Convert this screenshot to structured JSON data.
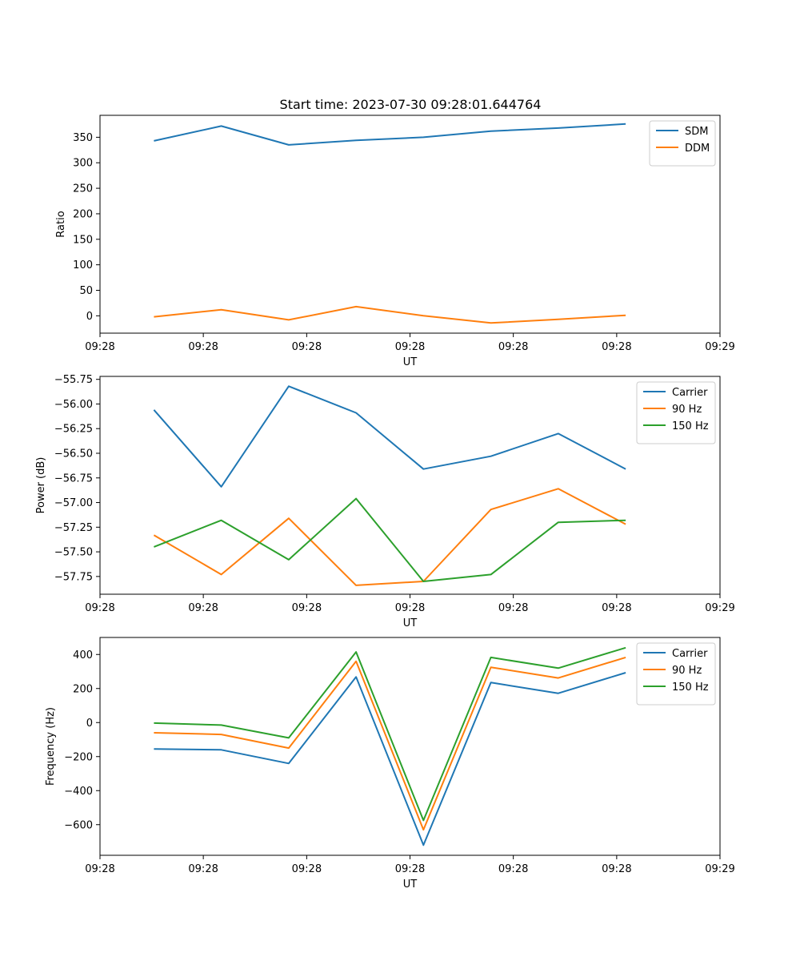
{
  "title": "Start time: 2023-07-30 09:28:01.644764",
  "chart_data": [
    {
      "type": "line",
      "xlabel": "UT",
      "ylabel": "Ratio",
      "x": [
        1,
        2,
        3,
        4,
        5,
        6,
        7,
        8
      ],
      "xlim": [
        0.2,
        9.4
      ],
      "xticks": [
        0.2,
        1.733,
        3.267,
        4.8,
        6.333,
        7.867,
        9.4
      ],
      "xtick_labels": [
        "09:28",
        "09:28",
        "09:28",
        "09:28",
        "09:28",
        "09:28",
        "09:29"
      ],
      "ylim": [
        -34,
        393
      ],
      "yticks": [
        0,
        50,
        100,
        150,
        200,
        250,
        300,
        350
      ],
      "ytick_labels": [
        "0",
        "50",
        "100",
        "150",
        "200",
        "250",
        "300",
        "350"
      ],
      "legend_position": "top-right",
      "series": [
        {
          "name": "SDM",
          "color": "#1f77b4",
          "values": [
            343,
            372,
            335,
            344,
            350,
            362,
            368,
            376
          ]
        },
        {
          "name": "DDM",
          "color": "#ff7f0e",
          "values": [
            -2,
            12,
            -8,
            18,
            0,
            -14,
            -7,
            1
          ]
        }
      ]
    },
    {
      "type": "line",
      "xlabel": "UT",
      "ylabel": "Power (dB)",
      "x": [
        1,
        2,
        3,
        4,
        5,
        6,
        7,
        8
      ],
      "xlim": [
        0.2,
        9.4
      ],
      "xticks": [
        0.2,
        1.733,
        3.267,
        4.8,
        6.333,
        7.867,
        9.4
      ],
      "xtick_labels": [
        "09:28",
        "09:28",
        "09:28",
        "09:28",
        "09:28",
        "09:28",
        "09:29"
      ],
      "ylim": [
        -57.93,
        -55.72
      ],
      "yticks": [
        -57.75,
        -57.5,
        -57.25,
        -57.0,
        -56.75,
        -56.5,
        -56.25,
        -56.0,
        -55.75
      ],
      "ytick_labels": [
        "−57.75",
        "−57.50",
        "−57.25",
        "−57.00",
        "−56.75",
        "−56.50",
        "−56.25",
        "−56.00",
        "−55.75"
      ],
      "legend_position": "top-right",
      "series": [
        {
          "name": "Carrier",
          "color": "#1f77b4",
          "values": [
            -56.06,
            -56.84,
            -55.82,
            -56.09,
            -56.66,
            -56.53,
            -56.3,
            -56.66
          ]
        },
        {
          "name": "90 Hz",
          "color": "#ff7f0e",
          "values": [
            -57.33,
            -57.73,
            -57.16,
            -57.84,
            -57.8,
            -57.07,
            -56.86,
            -57.22
          ]
        },
        {
          "name": "150 Hz",
          "color": "#2ca02c",
          "values": [
            -57.45,
            -57.18,
            -57.58,
            -56.96,
            -57.8,
            -57.73,
            -57.2,
            -57.18
          ]
        }
      ]
    },
    {
      "type": "line",
      "xlabel": "UT",
      "ylabel": "Frequency (Hz)",
      "x": [
        1,
        2,
        3,
        4,
        5,
        6,
        7,
        8
      ],
      "xlim": [
        0.2,
        9.4
      ],
      "xticks": [
        0.2,
        1.733,
        3.267,
        4.8,
        6.333,
        7.867,
        9.4
      ],
      "xtick_labels": [
        "09:28",
        "09:28",
        "09:28",
        "09:28",
        "09:28",
        "09:28",
        "09:29"
      ],
      "ylim": [
        -780,
        500
      ],
      "yticks": [
        -600,
        -400,
        -200,
        0,
        200,
        400
      ],
      "ytick_labels": [
        "−600",
        "−400",
        "−200",
        "0",
        "200",
        "400"
      ],
      "legend_position": "top-right",
      "series": [
        {
          "name": "Carrier",
          "color": "#1f77b4",
          "values": [
            -155,
            -160,
            -240,
            268,
            -720,
            235,
            172,
            293
          ]
        },
        {
          "name": "90 Hz",
          "color": "#ff7f0e",
          "values": [
            -60,
            -70,
            -150,
            360,
            -630,
            325,
            262,
            383
          ]
        },
        {
          "name": "150 Hz",
          "color": "#2ca02c",
          "values": [
            -3,
            -15,
            -90,
            415,
            -575,
            383,
            320,
            440
          ]
        }
      ]
    }
  ]
}
